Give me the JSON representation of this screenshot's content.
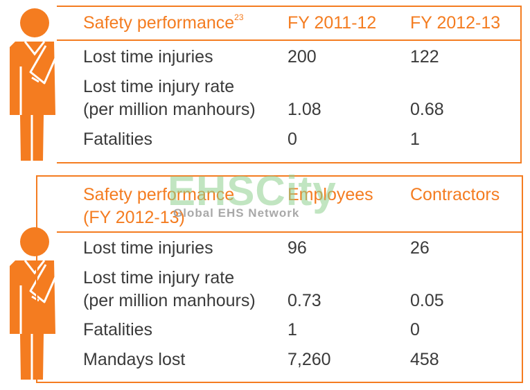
{
  "table1": {
    "header": {
      "label": "Safety performance",
      "footnote": "23",
      "col1": "FY 2011-12",
      "col2": "FY 2012-13"
    },
    "rows": [
      {
        "label": "Lost time injuries",
        "col1": "200",
        "col2": "122"
      },
      {
        "label_line1": "Lost time injury rate",
        "label_line2": "(per million manhours)",
        "col1": "1.08",
        "col2": "0.68"
      },
      {
        "label": "Fatalities",
        "col1": "0",
        "col2": "1"
      }
    ]
  },
  "table2": {
    "header": {
      "label_line1": "Safety performance",
      "label_line2": "(FY 2012-13)",
      "col1": "Employees",
      "col2": "Contractors"
    },
    "rows": [
      {
        "label": "Lost time injuries",
        "col1": "96",
        "col2": "26"
      },
      {
        "label_line1": "Lost time injury rate",
        "label_line2": "(per million manhours)",
        "col1": "0.73",
        "col2": "0.05"
      },
      {
        "label": "Fatalities",
        "col1": "1",
        "col2": "0"
      },
      {
        "label": "Mandays lost",
        "col1": "7,260",
        "col2": "458"
      }
    ]
  },
  "watermark": {
    "title": "EHSCity",
    "subtitle": "Global EHS Network"
  },
  "icons": [
    "injured-person-icon"
  ],
  "colors": {
    "accent": "#f47c20",
    "text": "#3a3a3a",
    "watermark": "#8fd18f"
  }
}
